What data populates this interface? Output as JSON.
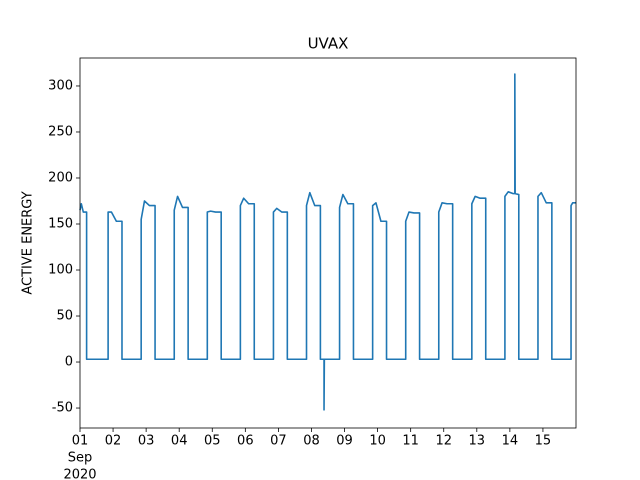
{
  "chart_data": {
    "type": "line",
    "title": "UVAX",
    "ylabel": "ACTIVE ENERGY",
    "x_sublabels": [
      "Sep",
      "2020"
    ],
    "xlim": [
      0,
      15
    ],
    "ylim": [
      -71.7,
      330.4
    ],
    "xticks": [
      {
        "value": 0,
        "label": "01"
      },
      {
        "value": 1,
        "label": "02"
      },
      {
        "value": 2,
        "label": "03"
      },
      {
        "value": 3,
        "label": "04"
      },
      {
        "value": 4,
        "label": "05"
      },
      {
        "value": 5,
        "label": "06"
      },
      {
        "value": 6,
        "label": "07"
      },
      {
        "value": 7,
        "label": "08"
      },
      {
        "value": 8,
        "label": "09"
      },
      {
        "value": 9,
        "label": "10"
      },
      {
        "value": 10,
        "label": "11"
      },
      {
        "value": 11,
        "label": "12"
      },
      {
        "value": 12,
        "label": "13"
      },
      {
        "value": 13,
        "label": "14"
      },
      {
        "value": 14,
        "label": "15"
      }
    ],
    "yticks": [
      -50,
      0,
      50,
      100,
      150,
      200,
      250,
      300
    ],
    "grid": false,
    "series": [
      {
        "color": "#1f77b4",
        "x": [
          0,
          0.04,
          0.1,
          0.2,
          0.2,
          0.85,
          0.85,
          0.95,
          1.1,
          1.27,
          1.27,
          1.85,
          1.85,
          1.95,
          2.1,
          2.27,
          2.27,
          2.85,
          2.85,
          2.95,
          3.1,
          3.27,
          3.27,
          3.85,
          3.85,
          3.95,
          4.1,
          4.27,
          4.27,
          4.85,
          4.85,
          4.95,
          5.1,
          5.27,
          5.27,
          5.85,
          5.85,
          5.95,
          6.1,
          6.27,
          6.27,
          6.85,
          6.85,
          6.95,
          7.1,
          7.27,
          7.27,
          7.38,
          7.38,
          7.39,
          7.85,
          7.85,
          7.95,
          8.1,
          8.27,
          8.27,
          8.85,
          8.85,
          8.95,
          9.1,
          9.27,
          9.27,
          9.85,
          9.85,
          9.95,
          10.1,
          10.27,
          10.27,
          10.85,
          10.85,
          10.95,
          11.1,
          11.27,
          11.27,
          11.85,
          11.85,
          11.95,
          12.1,
          12.27,
          12.27,
          12.85,
          12.85,
          12.95,
          13.1,
          13.15,
          13.15,
          13.16,
          13.27,
          13.27,
          13.85,
          13.85,
          13.95,
          14.1,
          14.27,
          14.27,
          14.85,
          14.85,
          14.9,
          15
        ],
        "values": [
          165,
          172,
          163,
          163,
          3,
          3,
          163,
          163,
          153,
          153,
          3,
          3,
          155,
          175,
          170,
          170,
          3,
          3,
          165,
          180,
          168,
          168,
          3,
          3,
          163,
          164,
          163,
          163,
          3,
          3,
          170,
          178,
          172,
          172,
          3,
          3,
          163,
          167,
          163,
          163,
          3,
          3,
          170,
          184,
          170,
          170,
          3,
          3,
          -52,
          3,
          3,
          168,
          182,
          172,
          172,
          3,
          3,
          170,
          173,
          153,
          153,
          3,
          3,
          153,
          163,
          162,
          162,
          3,
          3,
          163,
          173,
          172,
          172,
          3,
          3,
          172,
          180,
          178,
          178,
          3,
          3,
          180,
          185,
          183,
          183,
          313,
          183,
          182,
          3,
          3,
          180,
          184,
          173,
          173,
          3,
          3,
          170,
          173,
          173
        ]
      }
    ]
  }
}
